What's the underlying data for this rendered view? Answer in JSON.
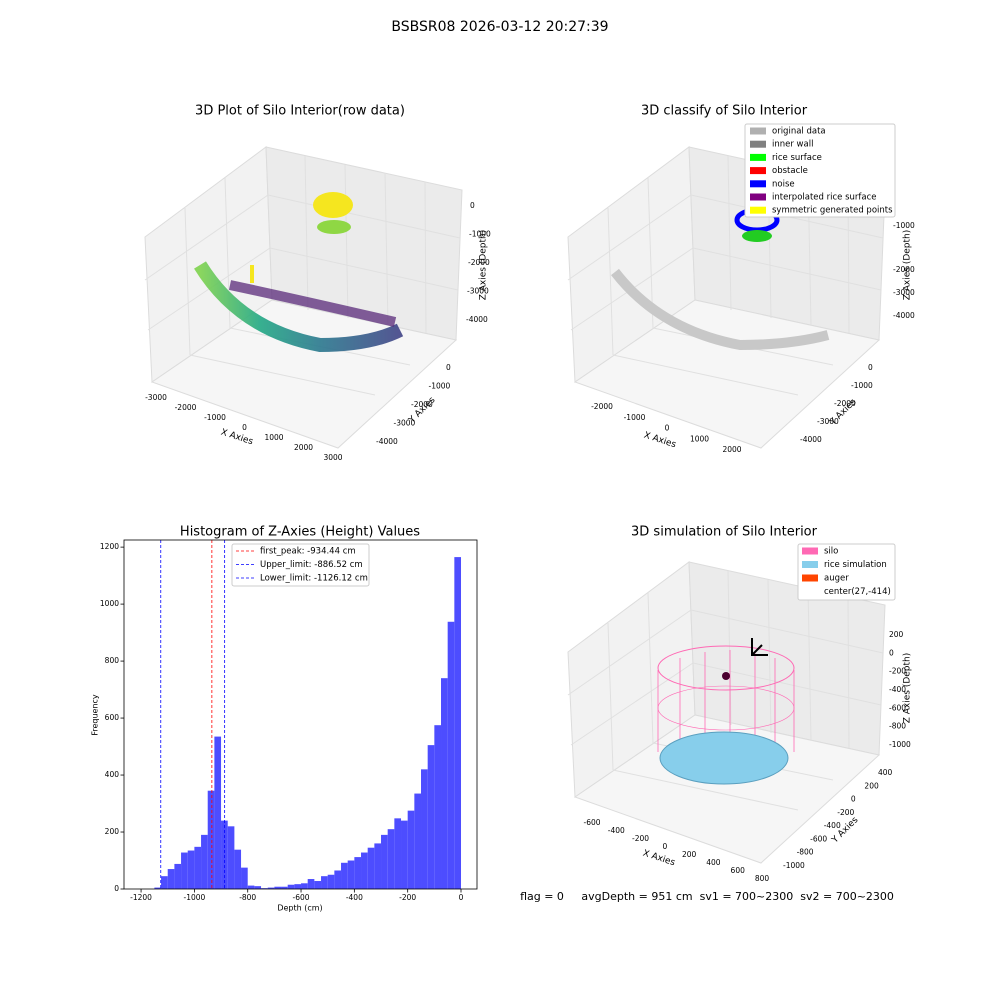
{
  "header": {
    "title": "BSBSR08 2026-03-12 20:27:39"
  },
  "raw_plot": {
    "title": "3D Plot of Silo Interior(row data)",
    "x_label": "X Axies",
    "y_label": "Y Axies",
    "z_label": "Z Axies (Depth)",
    "x_ticks": [
      "-3000",
      "-2000",
      "-1000",
      "0",
      "1000",
      "2000",
      "3000"
    ],
    "y_ticks": [
      "0",
      "-1000",
      "-2000",
      "-3000",
      "-4000"
    ],
    "z_ticks": [
      "0",
      "-1000",
      "-2000",
      "-3000",
      "-4000"
    ]
  },
  "classify_plot": {
    "title": "3D classify of Silo Interior",
    "x_label": "X Axies",
    "y_label": "Y Axies",
    "z_label": "Z Axies (Depth)",
    "x_ticks": [
      "-2000",
      "-1000",
      "0",
      "1000",
      "2000"
    ],
    "y_ticks": [
      "0",
      "-1000",
      "-2000",
      "-3000",
      "-4000"
    ],
    "z_ticks": [
      "-1000",
      "-2000",
      "-3000",
      "-4000"
    ],
    "legend": [
      {
        "label": "original data",
        "color": "#b0b0b0"
      },
      {
        "label": "inner wall",
        "color": "#808080"
      },
      {
        "label": "rice surface",
        "color": "#00ff00"
      },
      {
        "label": "obstacle",
        "color": "#ff0000"
      },
      {
        "label": "noise",
        "color": "#0000ff"
      },
      {
        "label": "interpolated rice surface",
        "color": "#800080"
      },
      {
        "label": "symmetric generated points",
        "color": "#ffff00"
      }
    ]
  },
  "chart_data": {
    "type": "histogram",
    "title": "Histogram of Z-Axies (Height) Values",
    "x_label": "Depth (cm)",
    "y_label": "Frequency",
    "color": "#4d4dff",
    "bins": [
      -1150,
      -1125,
      -1100,
      -1075,
      -1050,
      -1025,
      -1000,
      -975,
      -950,
      -925,
      -900,
      -875,
      -850,
      -825,
      -800,
      -775,
      -750,
      -725,
      -700,
      -675,
      -650,
      -625,
      -600,
      -575,
      -550,
      -525,
      -500,
      -475,
      -450,
      -425,
      -400,
      -375,
      -350,
      -325,
      -300,
      -275,
      -250,
      -225,
      -200,
      -175,
      -150,
      -125,
      -100,
      -75,
      -50,
      -25,
      0
    ],
    "values": [
      5,
      45,
      70,
      88,
      128,
      135,
      148,
      190,
      345,
      535,
      240,
      220,
      138,
      75,
      12,
      10,
      3,
      5,
      8,
      8,
      15,
      17,
      20,
      35,
      28,
      45,
      50,
      65,
      92,
      100,
      112,
      128,
      145,
      160,
      190,
      210,
      248,
      240,
      275,
      335,
      420,
      505,
      575,
      740,
      938,
      1165
    ],
    "xlim": [
      -1264,
      60
    ],
    "ylim": [
      0,
      1225
    ],
    "xticks": [
      -1200,
      -1000,
      -800,
      -600,
      -400,
      -200,
      0
    ],
    "yticks": [
      0,
      200,
      400,
      600,
      800,
      1000,
      1200
    ],
    "vlines": [
      {
        "label": "first_peak: -934.44 cm",
        "value": -934.44,
        "color": "#ff0000"
      },
      {
        "label": "Upper_limit: -886.52 cm",
        "value": -886.52,
        "color": "#0000ff"
      },
      {
        "label": "Lower_limit: -1126.12 cm",
        "value": -1126.12,
        "color": "#0000ff"
      }
    ]
  },
  "simulation_plot": {
    "title": "3D simulation of Silo Interior",
    "x_label": "X Axies",
    "y_label": "Y Axies",
    "z_label": "Z Axies (Depth)",
    "x_ticks": [
      "-600",
      "-400",
      "-200",
      "0",
      "200",
      "400",
      "600",
      "800"
    ],
    "y_ticks": [
      "400",
      "200",
      "0",
      "-200",
      "-400",
      "-600",
      "-800",
      "-1000"
    ],
    "z_ticks": [
      "200",
      "0",
      "-200",
      "-400",
      "-600",
      "-800",
      "-1000"
    ],
    "legend": [
      {
        "label": "silo",
        "color": "#ff69b4"
      },
      {
        "label": "rice simulation",
        "color": "#87ceeb"
      },
      {
        "label": "auger",
        "color": "#ff4500"
      },
      {
        "label": "center(27,-414)"
      }
    ]
  },
  "footer": {
    "status": "flag = 0     avgDepth = 951 cm  sv1 = 700~2300  sv2 = 700~2300"
  }
}
